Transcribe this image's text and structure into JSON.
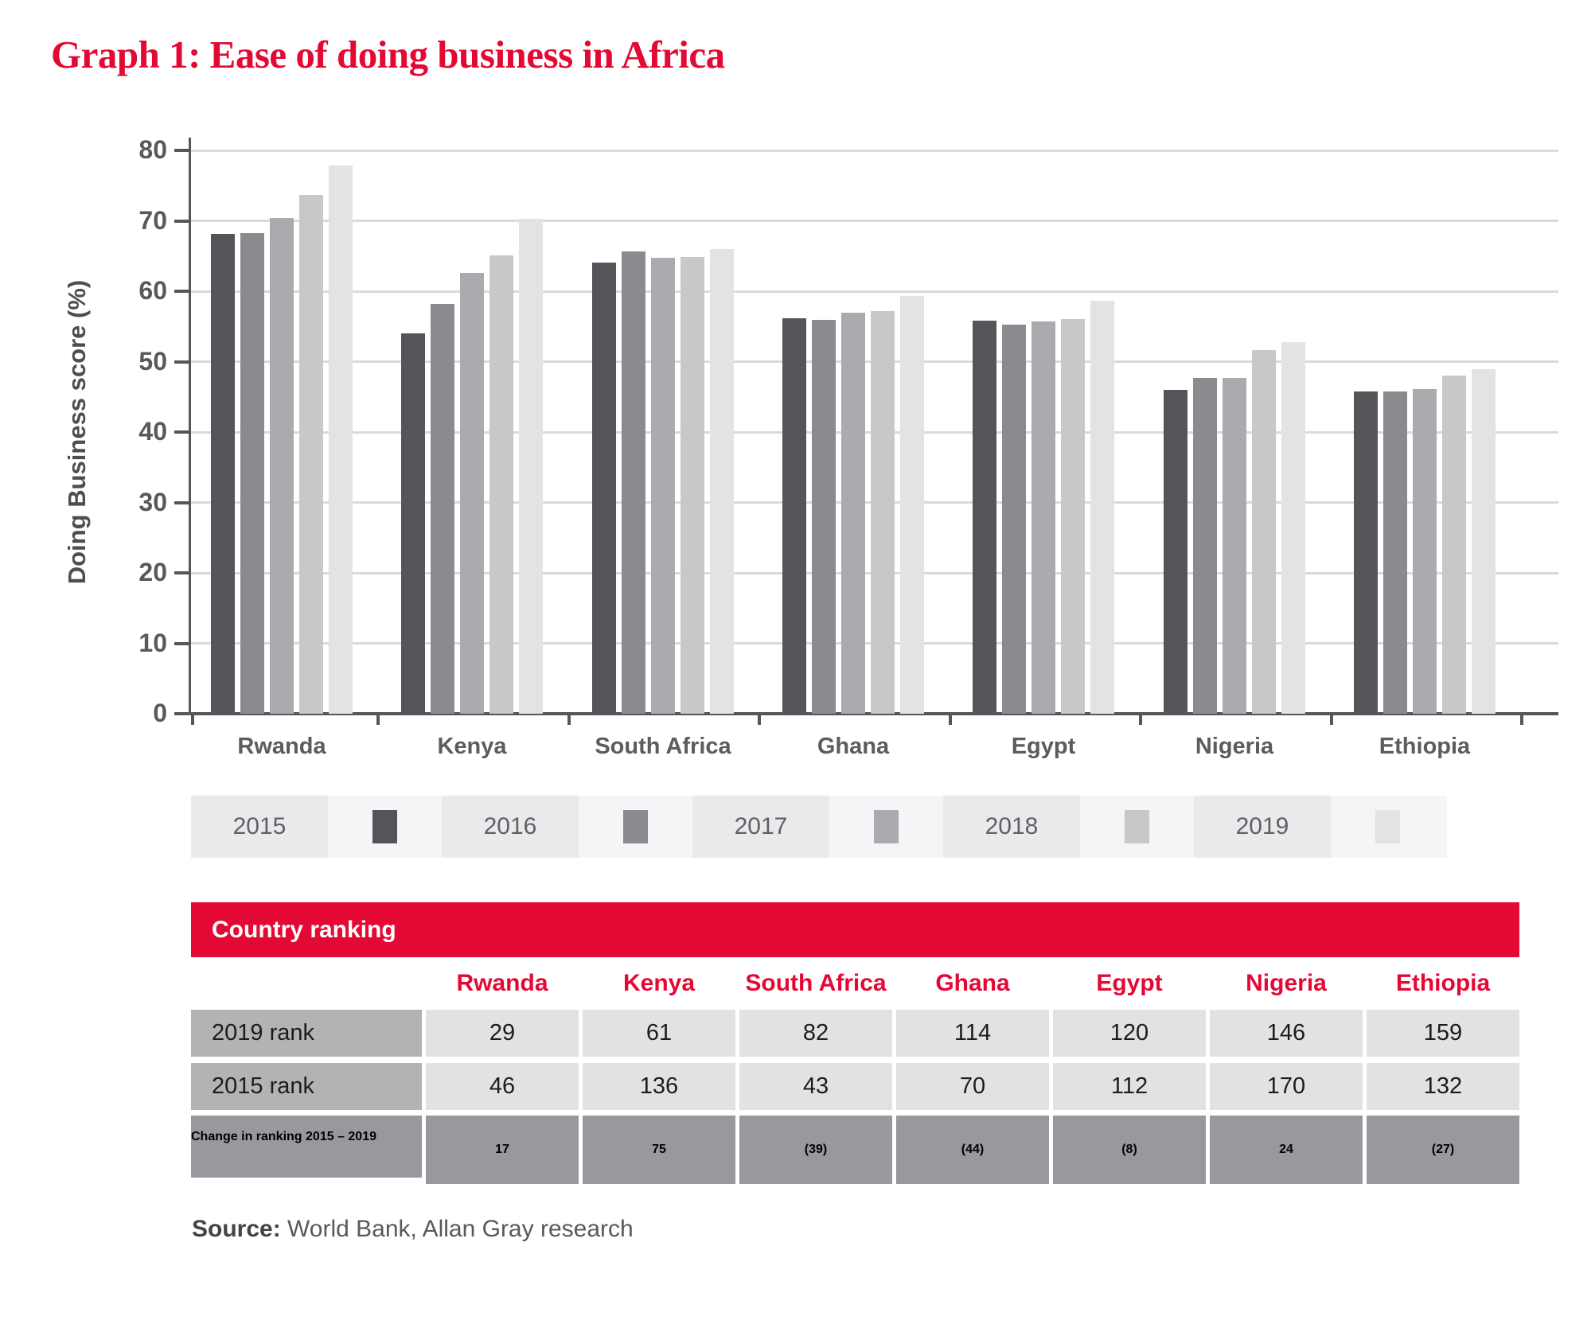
{
  "title": "Graph 1: Ease of doing business in Africa",
  "chart_data": {
    "type": "bar",
    "title": "Graph 1: Ease of doing business in Africa",
    "xlabel": "",
    "ylabel": "Doing Business score (%)",
    "ylim": [
      0,
      80
    ],
    "yticks": [
      0,
      10,
      20,
      30,
      40,
      50,
      60,
      70,
      80
    ],
    "grid": true,
    "legend_position": "bottom",
    "categories": [
      "Rwanda",
      "Kenya",
      "South Africa",
      "Ghana",
      "Egypt",
      "Nigeria",
      "Ethiopia"
    ],
    "series": [
      {
        "name": "2015",
        "color": "#545559",
        "values": [
          68.1,
          54.0,
          64.1,
          56.2,
          55.8,
          46.0,
          45.8
        ]
      },
      {
        "name": "2016",
        "color": "#8a8b8e",
        "values": [
          68.3,
          58.2,
          65.6,
          55.9,
          55.3,
          47.7,
          45.8
        ]
      },
      {
        "name": "2017",
        "color": "#a9abae",
        "values": [
          70.4,
          62.6,
          64.8,
          56.9,
          55.7,
          47.7,
          46.1
        ]
      },
      {
        "name": "2018",
        "color": "#c7c8ca",
        "values": [
          73.7,
          65.1,
          64.9,
          57.2,
          56.0,
          51.6,
          48.0
        ]
      },
      {
        "name": "2019",
        "color": "#e2e3e4",
        "values": [
          77.9,
          70.3,
          66.0,
          59.3,
          58.7,
          52.8,
          48.9
        ]
      }
    ]
  },
  "table": {
    "header": "Country ranking",
    "columns": [
      "Rwanda",
      "Kenya",
      "South Africa",
      "Ghana",
      "Egypt",
      "Nigeria",
      "Ethiopia"
    ],
    "rows": [
      {
        "label": "2019 rank",
        "values": [
          "29",
          "61",
          "82",
          "114",
          "120",
          "146",
          "159"
        ],
        "emphasis": false
      },
      {
        "label": "2015 rank",
        "values": [
          "46",
          "136",
          "43",
          "70",
          "112",
          "170",
          "132"
        ],
        "emphasis": false
      },
      {
        "label": "Change in ranking 2015 – 2019",
        "values": [
          "17",
          "75",
          "(39)",
          "(44)",
          "(8)",
          "24",
          "(27)"
        ],
        "emphasis": true
      }
    ]
  },
  "source": {
    "label": "Source:",
    "text": " World Bank, Allan Gray research"
  },
  "colors": {
    "accent_red": "#e30934",
    "axis": "#55565a",
    "grid": "#d9dadb",
    "tick_label": "#58595b",
    "table_label_bg": "#b2b3b5",
    "table_cell_bg": "#e2e2e3",
    "table_change_bg": "#98999c",
    "legend_strip_bg": "#f4f5f6",
    "legend_year_bg": "#e9eaeb"
  }
}
